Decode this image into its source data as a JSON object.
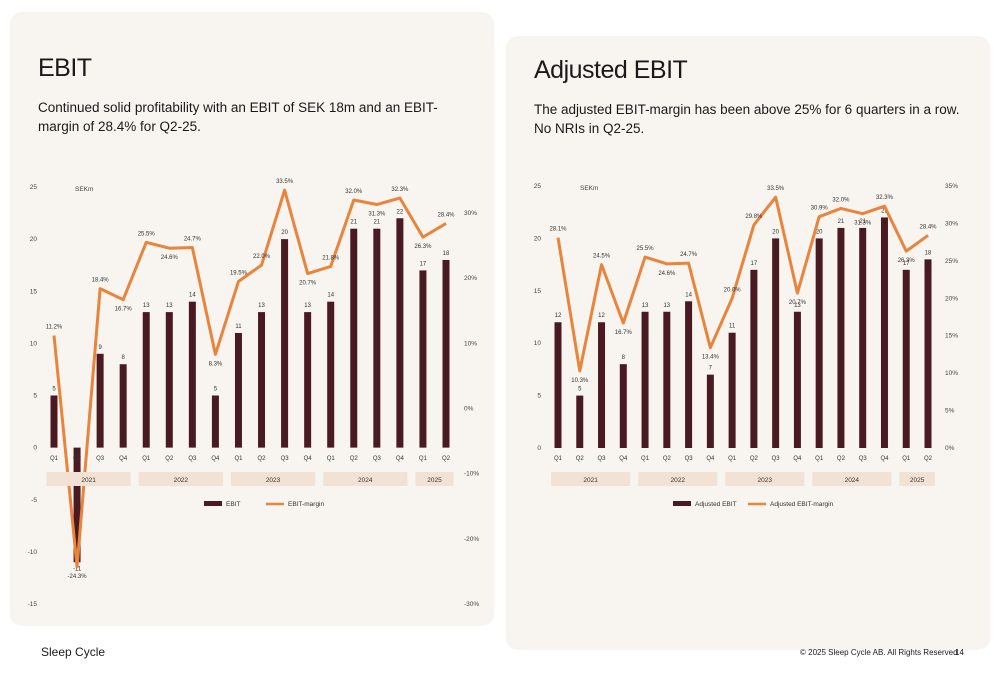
{
  "colors": {
    "bar": "#4a1a22",
    "line": "#e8843c",
    "year_band": "#f2e2d3",
    "panel": "#f8f4ef"
  },
  "footer": {
    "brand": "Sleep Cycle",
    "copyright": "© 2025 Sleep Cycle AB. All Rights Reserved",
    "page": "14"
  },
  "panels": [
    {
      "title": "EBIT",
      "subtitle": "Continued solid profitability with an EBIT of SEK 18m and an EBIT-margin of 28.4% for Q2-25."
    },
    {
      "title": "Adjusted EBIT",
      "subtitle": "The adjusted EBIT-margin has been above 25% for 6 quarters in a row. No NRIs in Q2-25."
    }
  ],
  "chart_data": [
    {
      "type": "bar",
      "unit_label": "SEKm",
      "categories": [
        "Q1",
        "Q2",
        "Q3",
        "Q4",
        "Q1",
        "Q2",
        "Q3",
        "Q4",
        "Q1",
        "Q2",
        "Q3",
        "Q4",
        "Q1",
        "Q2",
        "Q3",
        "Q4",
        "Q1",
        "Q2"
      ],
      "years": [
        {
          "label": "2021",
          "span": 4
        },
        {
          "label": "2022",
          "span": 4
        },
        {
          "label": "2023",
          "span": 4
        },
        {
          "label": "2024",
          "span": 4
        },
        {
          "label": "2025",
          "span": 2
        }
      ],
      "series": [
        {
          "name": "EBIT",
          "type": "bar",
          "axis": "left",
          "values": [
            5,
            -11,
            9,
            8,
            13,
            13,
            14,
            5,
            11,
            13,
            20,
            13,
            14,
            21,
            21,
            22,
            17,
            18
          ],
          "labels": [
            "5",
            "-11",
            "9",
            "8",
            "13",
            "13",
            "14",
            "5",
            "11",
            "13",
            "20",
            "13",
            "14",
            "21",
            "21",
            "22",
            "17",
            "18"
          ]
        },
        {
          "name": "EBIT-margin",
          "type": "line",
          "axis": "right",
          "values": [
            11.2,
            -24.3,
            18.4,
            16.7,
            25.5,
            24.6,
            24.7,
            8.3,
            19.5,
            22.0,
            33.5,
            20.7,
            21.8,
            32.0,
            31.3,
            32.3,
            26.3,
            28.4
          ],
          "labels": [
            "11.2%",
            "-24.3%",
            "18.4%",
            "16.7%",
            "25.5%",
            "24.6%",
            "24.7%",
            "8.3%",
            "19.5%",
            "22.0%",
            "33.5%",
            "20.7%",
            "21.8%",
            "32.0%",
            "31.3%",
            "32.3%",
            "26.3%",
            "28.4%"
          ]
        }
      ],
      "ylim_left": [
        -15,
        25
      ],
      "yticks_left": [
        "-15",
        "-10",
        "-5",
        "0",
        "5",
        "10",
        "15",
        "20",
        "25"
      ],
      "ylim_right": [
        -30,
        30
      ],
      "yticks_right": [
        "-30%",
        "-20%",
        "-10%",
        "0%",
        "10%",
        "20%",
        "30%"
      ],
      "legend": [
        "EBIT",
        "EBIT-margin"
      ],
      "legend_position": "bottom"
    },
    {
      "type": "bar",
      "unit_label": "SEKm",
      "categories": [
        "Q1",
        "Q2",
        "Q3",
        "Q4",
        "Q1",
        "Q2",
        "Q3",
        "Q4",
        "Q1",
        "Q2",
        "Q3",
        "Q4",
        "Q1",
        "Q2",
        "Q3",
        "Q4",
        "Q1",
        "Q2"
      ],
      "years": [
        {
          "label": "2021",
          "span": 4
        },
        {
          "label": "2022",
          "span": 4
        },
        {
          "label": "2023",
          "span": 4
        },
        {
          "label": "2024",
          "span": 4
        },
        {
          "label": "2025",
          "span": 2
        }
      ],
      "series": [
        {
          "name": "Adjusted EBIT",
          "type": "bar",
          "axis": "left",
          "values": [
            12,
            5,
            12,
            8,
            13,
            13,
            14,
            7,
            11,
            17,
            20,
            13,
            20,
            21,
            21,
            22,
            17,
            18
          ],
          "labels": [
            "12",
            "5",
            "12",
            "8",
            "13",
            "13",
            "14",
            "7",
            "11",
            "17",
            "20",
            "13",
            "20",
            "21",
            "21",
            "22",
            "17",
            "18"
          ]
        },
        {
          "name": "Adjusted EBIT-margin",
          "type": "line",
          "axis": "right",
          "values": [
            28.1,
            10.3,
            24.5,
            16.7,
            25.5,
            24.6,
            24.7,
            13.4,
            20.0,
            29.8,
            33.5,
            20.7,
            30.9,
            32.0,
            31.3,
            32.3,
            26.3,
            28.4
          ],
          "labels": [
            "28.1%",
            "10.3%",
            "24.5%",
            "16.7%",
            "25.5%",
            "24.6%",
            "24.7%",
            "13.4%",
            "20.0%",
            "29.8%",
            "33.5%",
            "20.7%",
            "30.9%",
            "32.0%",
            "31.3%",
            "32.3%",
            "26.3%",
            "28.4%"
          ]
        }
      ],
      "ylim_left": [
        0,
        25
      ],
      "yticks_left": [
        "0",
        "5",
        "10",
        "15",
        "20",
        "25"
      ],
      "ylim_right": [
        0,
        35
      ],
      "yticks_right": [
        "0%",
        "5%",
        "10%",
        "15%",
        "20%",
        "25%",
        "30%",
        "35%"
      ],
      "legend": [
        "Adjusted EBIT",
        "Adjusted EBIT-margin"
      ],
      "legend_position": "bottom"
    }
  ]
}
